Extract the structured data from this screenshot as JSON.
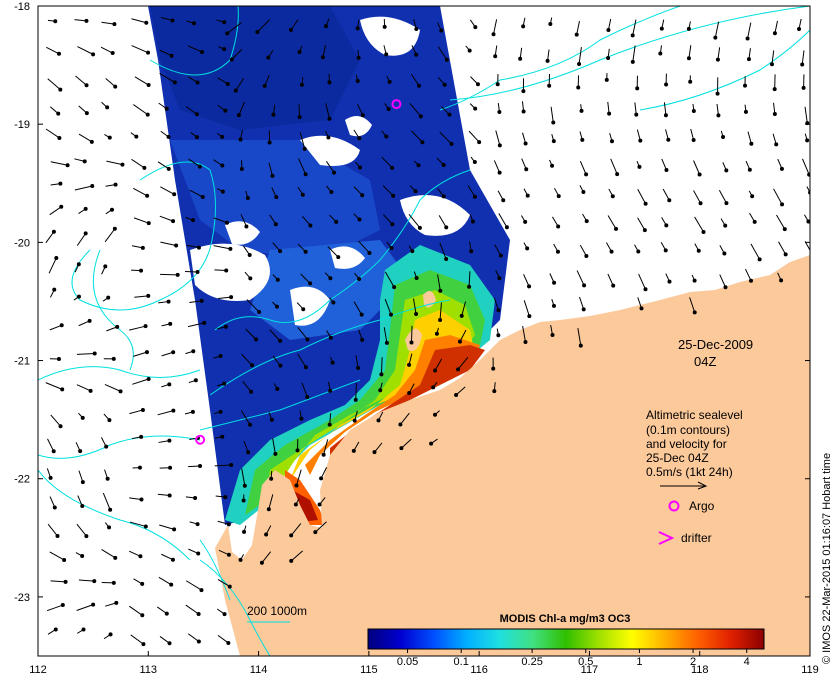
{
  "map": {
    "date_label": "25-Dec-2009",
    "time_label": "04Z",
    "legend": {
      "lines": [
        "Altimetric sealevel",
        "(0.1m contours)",
        "and velocity for",
        "25-Dec 04Z",
        "0.5m/s (1kt 24h)"
      ],
      "argo_label": "Argo",
      "drifter_label": "drifter"
    },
    "depth_label": "200  1000m",
    "credit": "© IMOS 22-Mar-2015 01:16:07 Hobart time",
    "colorbar": {
      "title": "MODIS Chl-a mg/m3 OC3",
      "ticks": [
        {
          "label": "0.05",
          "value": 0.05
        },
        {
          "label": "0.1",
          "value": 0.1
        },
        {
          "label": "0.25",
          "value": 0.25
        },
        {
          "label": "0.5",
          "value": 0.5
        },
        {
          "label": "1",
          "value": 1
        },
        {
          "label": "2",
          "value": 2
        },
        {
          "label": "4",
          "value": 4
        }
      ],
      "range": [
        0.03,
        5
      ],
      "scale": "log",
      "colors": [
        "#00007f",
        "#0000d0",
        "#0050ff",
        "#00b0ff",
        "#20e0e0",
        "#40e080",
        "#30c000",
        "#a0e000",
        "#ffff00",
        "#ffb000",
        "#ff6000",
        "#e02000",
        "#8b0000"
      ]
    },
    "axes": {
      "x_ticks": [
        "112",
        "113",
        "114",
        "115",
        "116",
        "117",
        "118",
        "119"
      ],
      "y_ticks": [
        "-18",
        "-19",
        "-20",
        "-21",
        "-22",
        "-23"
      ],
      "xlim": [
        112,
        119
      ],
      "ylim": [
        -23.5,
        -18
      ]
    },
    "argo_floats": [
      {
        "lon": 115.25,
        "lat": -18.83
      },
      {
        "lon": 113.47,
        "lat": -21.67
      }
    ],
    "colors": {
      "land": "#fcc99b",
      "contour": "#00e0e0",
      "argo": "#ff00ff",
      "drifter": "#ff00ff",
      "ocean_white": "#ffffff"
    }
  }
}
